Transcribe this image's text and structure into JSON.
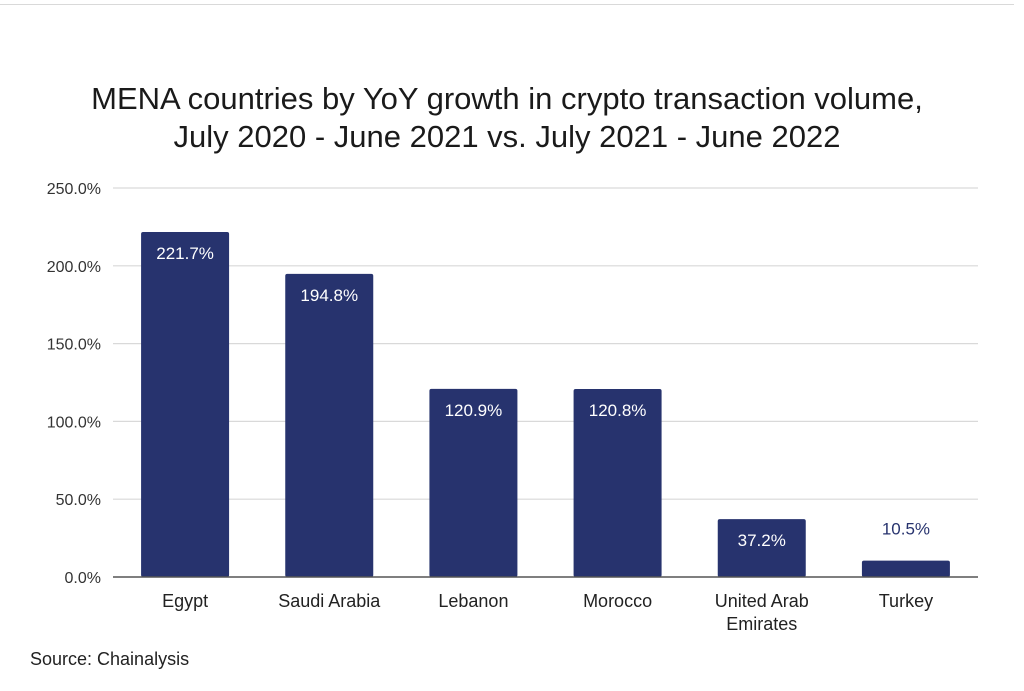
{
  "chart_data": {
    "type": "bar",
    "title_line1": "MENA countries by YoY growth in crypto transaction volume,",
    "title_line2": "July 2020 - June 2021 vs. July 2021 - June 2022",
    "categories": [
      "Egypt",
      "Saudi Arabia",
      "Lebanon",
      "Morocco",
      "United Arab Emirates",
      "Turkey"
    ],
    "category_lines": [
      [
        "Egypt"
      ],
      [
        "Saudi Arabia"
      ],
      [
        "Lebanon"
      ],
      [
        "Morocco"
      ],
      [
        "United Arab",
        "Emirates"
      ],
      [
        "Turkey"
      ]
    ],
    "values": [
      221.7,
      194.8,
      120.9,
      120.8,
      37.2,
      10.5
    ],
    "data_labels": [
      "221.7%",
      "194.8%",
      "120.9%",
      "120.8%",
      "37.2%",
      "10.5%"
    ],
    "ylim": [
      0,
      250
    ],
    "yticks": [
      0,
      50,
      100,
      150,
      200,
      250
    ],
    "ytick_labels": [
      "0.0%",
      "50.0%",
      "100.0%",
      "150.0%",
      "200.0%",
      "250.0%"
    ],
    "xlabel": "",
    "ylabel": "",
    "grid": true,
    "legend": "none",
    "bar_color": "#27336e",
    "label_inside_color": "#ffffff",
    "label_outside_color": "#27336e",
    "grid_color": "#d9d9d9",
    "axis_color": "#555555"
  },
  "source_text": "Source: Chainalysis"
}
